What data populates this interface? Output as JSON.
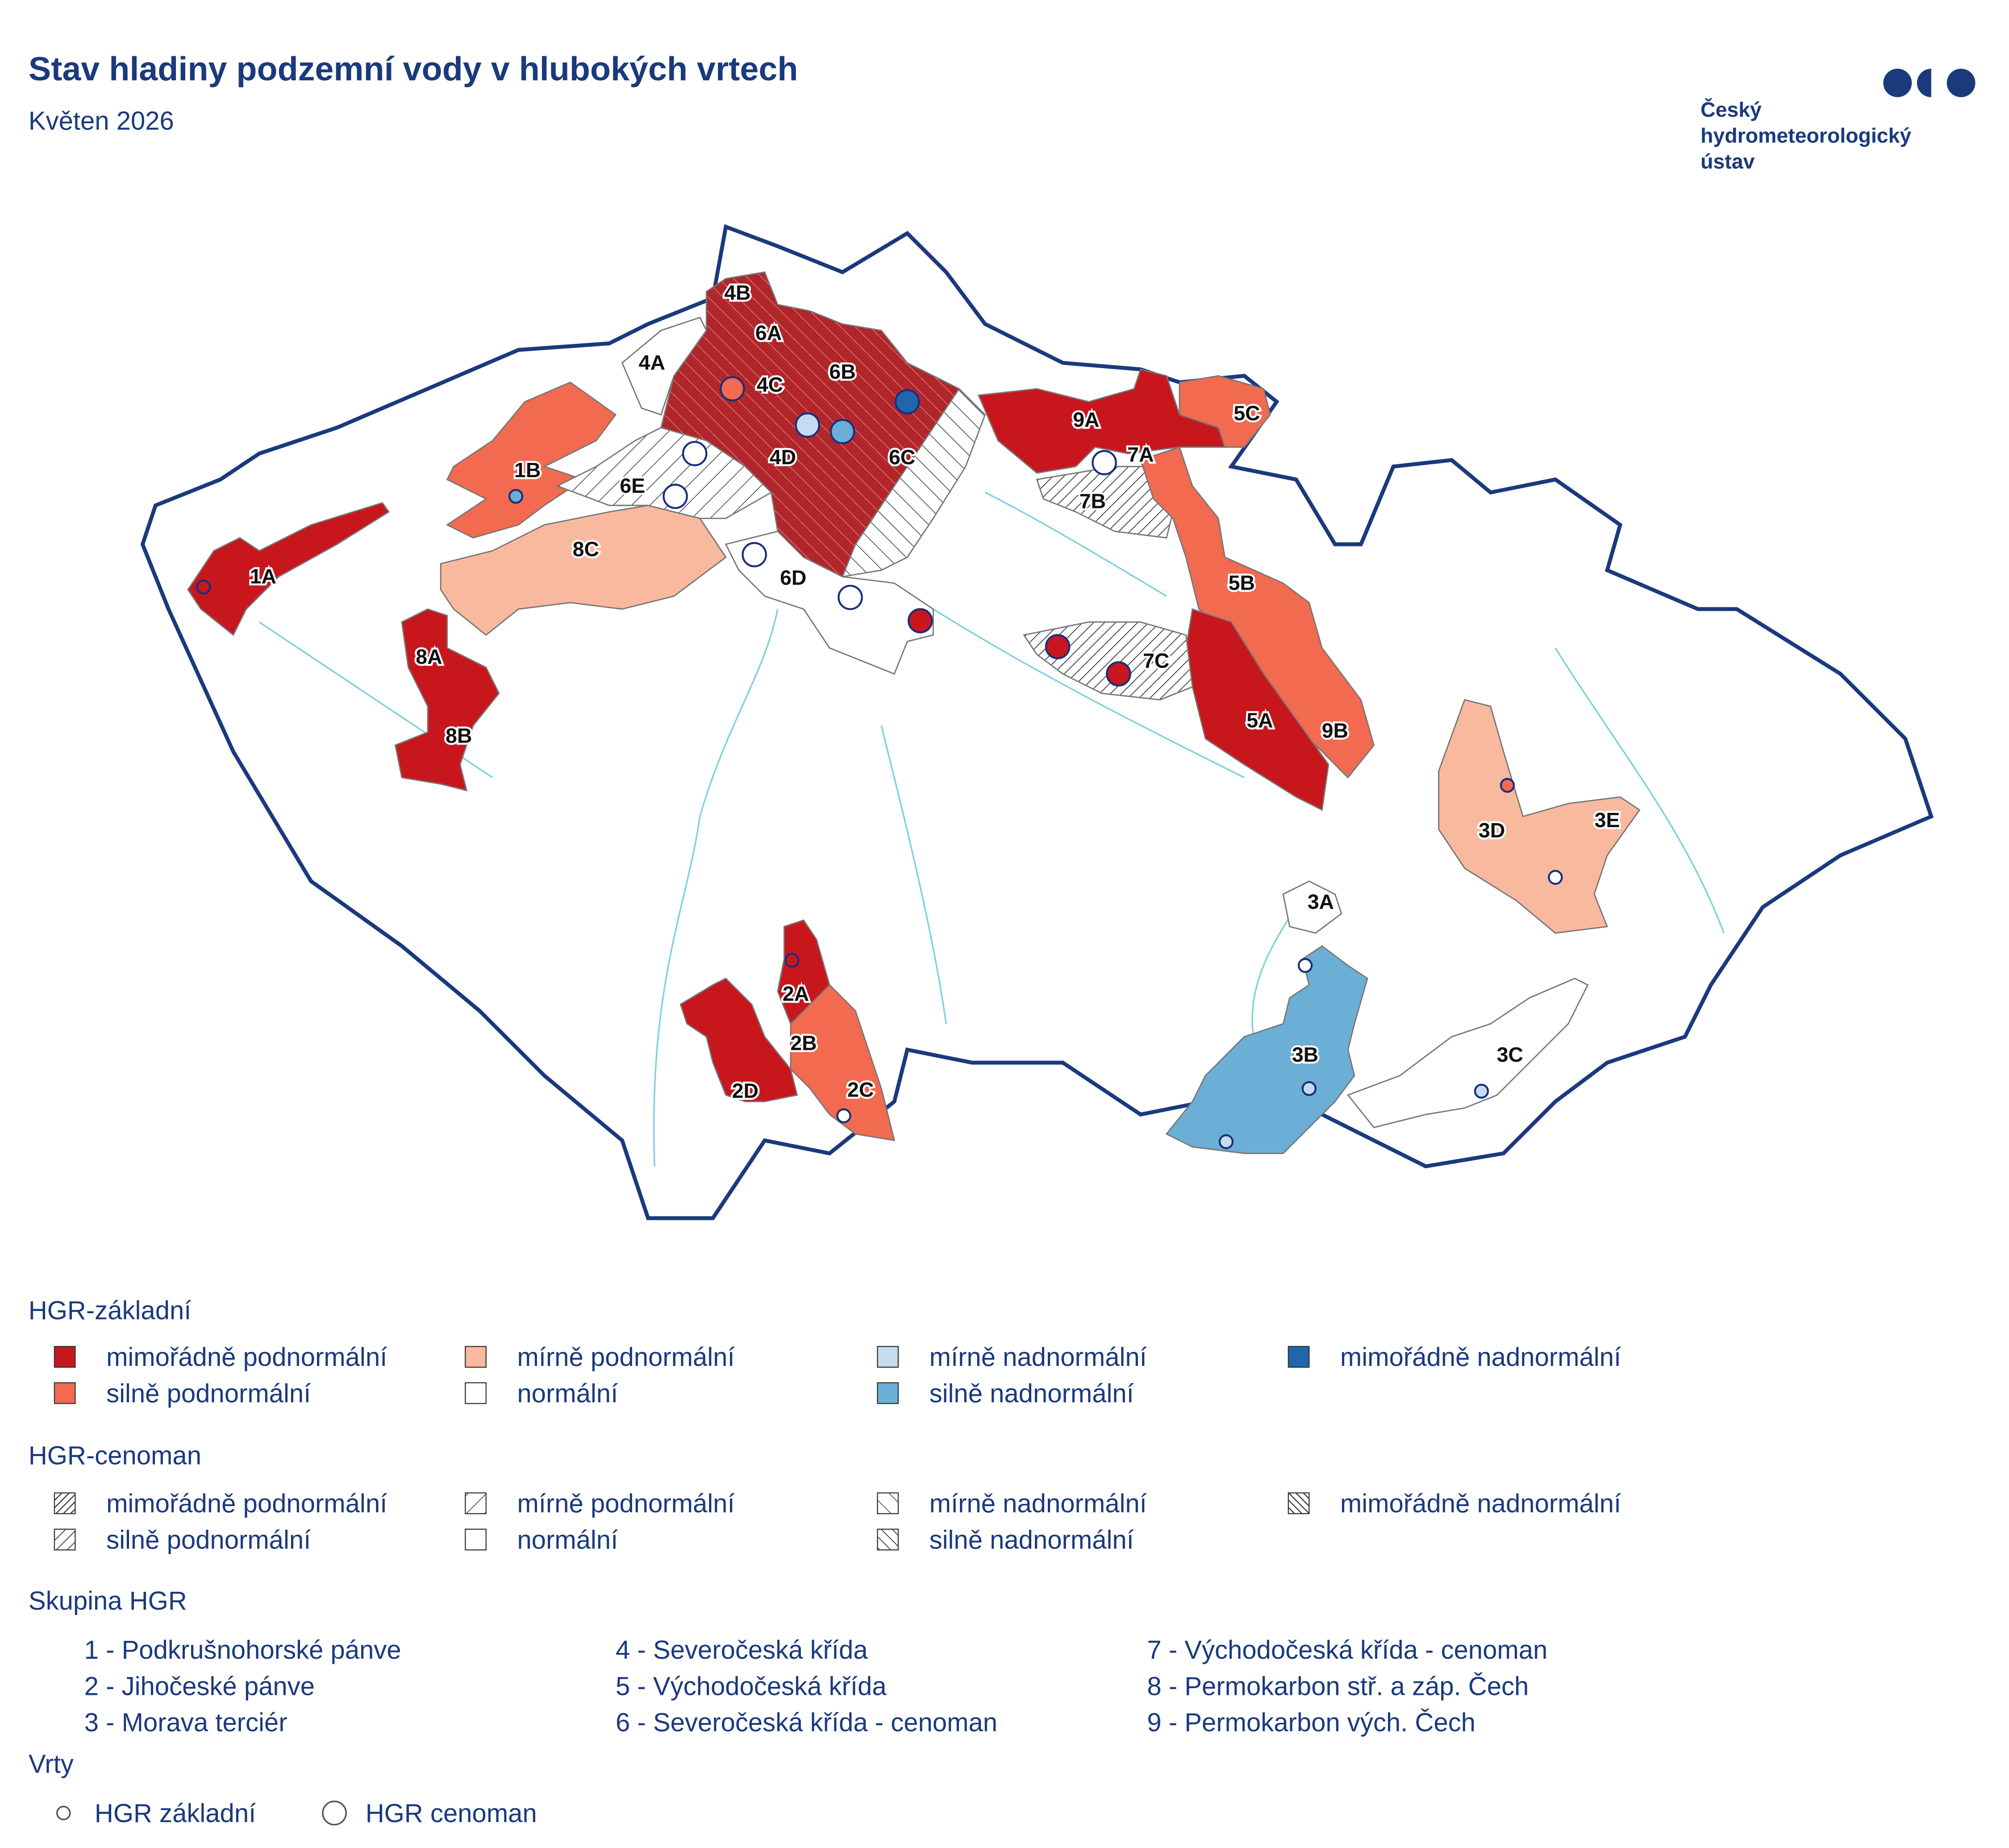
{
  "header": {
    "title": "Stav hladiny podzemní vody v hlubokých vrtech",
    "subtitle": "Květen 2026"
  },
  "logo": {
    "lines": [
      "Český",
      "hydrometeorologický",
      "ústav"
    ]
  },
  "map": {
    "region_labels": [
      "1A",
      "1B",
      "2A",
      "2B",
      "2C",
      "2D",
      "3A",
      "3B",
      "3C",
      "3D",
      "3E",
      "4A",
      "4B",
      "4C",
      "4D",
      "5A",
      "5B",
      "5C",
      "6A",
      "6B",
      "6C",
      "6D",
      "6E",
      "7A",
      "7B",
      "7C",
      "8A",
      "8B",
      "8C",
      "9A",
      "9B"
    ]
  },
  "legend": {
    "basic": {
      "title": "HGR-základní",
      "items": [
        {
          "label": "mimořádně podnormální",
          "color": "#c8161d"
        },
        {
          "label": "silně podnormální",
          "color": "#f26a4f"
        },
        {
          "label": "mírně podnormální",
          "color": "#f9b99e"
        },
        {
          "label": "normální",
          "color": "#ffffff"
        },
        {
          "label": "mírně nadnormální",
          "color": "#c6dbef"
        },
        {
          "label": "silně nadnormální",
          "color": "#6baed6"
        },
        {
          "label": "mimořádně nadnormální",
          "color": "#2166ac"
        }
      ]
    },
    "cenoman": {
      "title": "HGR-cenoman",
      "items": [
        "mimořádně podnormální",
        "silně podnormální",
        "mírně podnormální",
        "normální",
        "mírně nadnormální",
        "silně nadnormální",
        "mimořádně nadnormální"
      ]
    },
    "groups": {
      "title": "Skupina HGR",
      "items": [
        "1 - Podkrušnohorské pánve",
        "2 - Jihočeské pánve",
        "3 - Morava terciér",
        "4 - Severočeská křída",
        "5 - Východočeská křída",
        "6 - Severočeská křída - cenoman",
        "7 - Východočeská křída - cenoman",
        "8 - Permokarbon stř. a záp. Čech",
        "9 - Permokarbon vých. Čech"
      ]
    },
    "wells": {
      "title": "Vrty",
      "items": [
        "HGR základní",
        "HGR cenoman"
      ]
    }
  }
}
